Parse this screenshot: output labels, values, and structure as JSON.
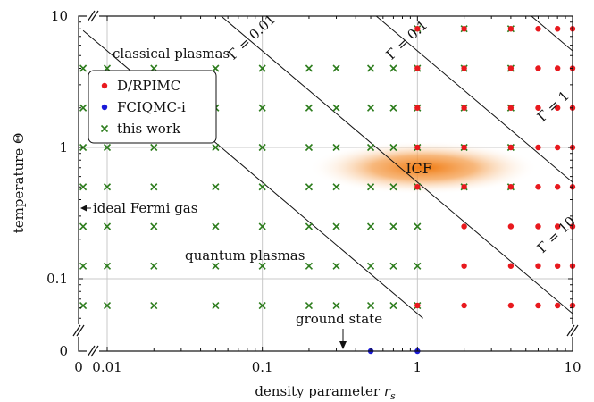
{
  "chart_data": {
    "type": "scatter",
    "xlabel": "density parameter ",
    "xlabel_sym": "r",
    "xlabel_sub": "s",
    "ylabel": "temperature Θ",
    "x_scale": "log",
    "y_scale": "log",
    "xlim": [
      0.0055,
      10
    ],
    "ylim": [
      0.045,
      10
    ],
    "grid": true,
    "x_ticks": [
      {
        "value": 0.01,
        "label": "0.01"
      },
      {
        "value": 0.1,
        "label": "0.1"
      },
      {
        "value": 1,
        "label": "1"
      },
      {
        "value": 10,
        "label": "10"
      }
    ],
    "x_zero_label": "0",
    "y_ticks": [
      {
        "value": 0.1,
        "label": "0.1"
      },
      {
        "value": 1,
        "label": "1"
      },
      {
        "value": 10,
        "label": "10"
      }
    ],
    "y_zero_label": "0",
    "legend": {
      "position": "top-left",
      "entries": [
        {
          "label": "D/RPIMC",
          "color": "#e8191e",
          "marker": "dot"
        },
        {
          "label": "FCIQMC-i",
          "color": "#1a1ad8",
          "marker": "dot"
        },
        {
          "label": "this work",
          "color": "#2e7d1e",
          "marker": "cross"
        }
      ]
    },
    "gamma_lines": [
      {
        "label": "Γ = 0.01",
        "coef": 54.3
      },
      {
        "label": "Γ = 0.1",
        "coef": 5.43
      },
      {
        "label": "Γ = 1",
        "coef": 0.543
      },
      {
        "label": "Γ = 10",
        "coef": 0.0543
      }
    ],
    "annotations": {
      "classical": "classical plasmas",
      "quantum": "quantum plasmas",
      "ideal": "ideal Fermi gas",
      "ground": "ground state",
      "icf": "ICF"
    },
    "icf_region": {
      "rs_range": [
        0.2,
        6
      ],
      "theta_center": 0.7
    },
    "series": [
      {
        "name": "this work",
        "color": "#2e7d1e",
        "marker": "cross",
        "theta": [
          8,
          4,
          2,
          1,
          0.5,
          0.25,
          0.125,
          0.0625
        ],
        "rs": [
          0.007,
          0.01,
          0.02,
          0.05,
          0.1,
          0.2,
          0.3,
          0.5,
          0.7,
          1,
          2,
          4
        ],
        "theta_min": {
          "0.007": 0.0625,
          "0.01": 0.0625,
          "0.02": 0.0625,
          "0.05": 0.0625,
          "0.1": 0.0625,
          "0.2": 0.0625,
          "0.3": 0.0625,
          "0.5": 0.0625,
          "0.7": 0.0625,
          "1": 0.0625,
          "2": 0.5,
          "4": 0.5
        },
        "theta_max": {
          "0.007": 4,
          "0.01": 4,
          "0.02": 4,
          "0.05": 4,
          "0.1": 4,
          "0.2": 4,
          "0.3": 4,
          "0.5": 4,
          "0.7": 4,
          "1": 8,
          "2": 8,
          "4": 8
        }
      },
      {
        "name": "D/RPIMC",
        "color": "#e8191e",
        "marker": "dot",
        "rs": [
          1,
          2,
          4,
          6,
          8,
          10
        ],
        "theta": [
          8,
          4,
          2,
          1,
          0.5,
          0.25,
          0.125,
          0.0625
        ]
      },
      {
        "name": "FCIQMC-i",
        "color": "#1a1ad8",
        "marker": "dot",
        "rs": [
          0.5,
          1
        ],
        "theta": [
          0,
          0
        ]
      }
    ]
  }
}
